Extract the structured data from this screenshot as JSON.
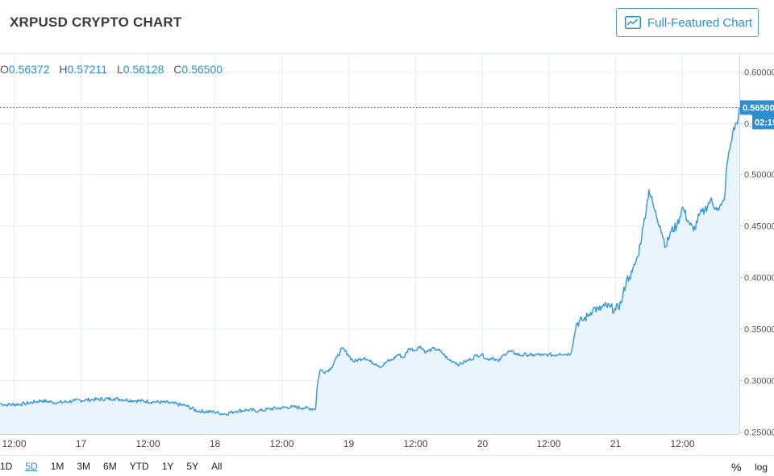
{
  "header": {
    "title": "XRPUSD CRYPTO CHART",
    "full_chart_label": "Full-Featured Chart"
  },
  "ohlc": {
    "o_label": "O",
    "o_value": "0.56372",
    "h_label": "H",
    "h_value": "0.57211",
    "l_label": "L",
    "l_value": "0.56128",
    "c_label": "C",
    "c_value": "0.56500"
  },
  "price_tag": {
    "value": "0.56500",
    "countdown": "02:19"
  },
  "range_bar": {
    "items": [
      "1D",
      "5D",
      "1M",
      "3M",
      "6M",
      "YTD",
      "1Y",
      "5Y",
      "All"
    ],
    "active": "5D"
  },
  "scale_options": {
    "percent": "%",
    "log": "log"
  },
  "colors": {
    "line": "#3d9ad9",
    "fill": "#eaf4fc",
    "accent": "#2d8fd1",
    "grid": "#e9eef2"
  },
  "chart_data": {
    "type": "area",
    "title": "XRPUSD",
    "xlabel": "",
    "ylabel": "",
    "y_ticks": [
      0.25,
      0.3,
      0.35,
      0.4,
      0.45,
      0.5,
      0.55,
      0.6
    ],
    "y_tick_labels": [
      "0.25000",
      "0.30000",
      "0.35000",
      "0.40000",
      "0.45000",
      "0.50000",
      "0.55000",
      "0.60000"
    ],
    "ylim": [
      0.2475,
      0.617
    ],
    "x_ticks": [
      {
        "t": 12,
        "label": "12:00"
      },
      {
        "t": 24,
        "label": "17"
      },
      {
        "t": 36,
        "label": "12:00"
      },
      {
        "t": 48,
        "label": "18"
      },
      {
        "t": 60,
        "label": "12:00"
      },
      {
        "t": 72,
        "label": "19"
      },
      {
        "t": 84,
        "label": "12:00"
      },
      {
        "t": 96,
        "label": "20"
      },
      {
        "t": 108,
        "label": "12:00"
      },
      {
        "t": 120,
        "label": "21"
      },
      {
        "t": 132,
        "label": "12:00"
      }
    ],
    "xlim": [
      9.6,
      142.2
    ],
    "last_price": 0.565,
    "x": [
      9.6,
      11,
      14,
      17,
      20,
      23,
      26,
      30,
      34,
      37,
      40,
      43,
      45,
      48,
      50,
      52,
      54,
      56,
      58,
      60,
      62,
      64,
      66.2,
      66.5,
      67,
      68,
      69,
      70,
      71,
      72,
      73,
      74,
      75,
      76,
      77,
      78,
      79,
      80,
      81,
      82,
      83,
      84,
      85,
      86,
      87,
      88,
      89,
      90,
      91,
      92,
      93,
      94,
      95,
      96,
      97,
      98,
      99,
      100,
      101,
      102,
      103,
      104,
      105,
      106,
      107,
      108,
      109,
      110,
      111,
      112,
      112.5,
      113,
      114,
      115,
      116,
      117,
      118,
      119,
      120,
      121,
      122,
      122.5,
      123,
      124,
      125,
      126,
      127,
      128,
      129,
      130,
      131,
      132,
      133,
      134,
      135,
      136,
      137,
      138,
      138.5,
      139,
      139.5,
      140,
      141,
      142,
      142.2
    ],
    "y": [
      0.277,
      0.276,
      0.277,
      0.28,
      0.278,
      0.28,
      0.281,
      0.282,
      0.28,
      0.279,
      0.278,
      0.275,
      0.27,
      0.269,
      0.267,
      0.27,
      0.271,
      0.27,
      0.272,
      0.273,
      0.274,
      0.273,
      0.272,
      0.295,
      0.31,
      0.308,
      0.312,
      0.322,
      0.331,
      0.325,
      0.318,
      0.32,
      0.322,
      0.318,
      0.316,
      0.313,
      0.318,
      0.32,
      0.325,
      0.322,
      0.331,
      0.329,
      0.333,
      0.327,
      0.33,
      0.33,
      0.326,
      0.32,
      0.318,
      0.315,
      0.318,
      0.32,
      0.324,
      0.325,
      0.32,
      0.322,
      0.318,
      0.325,
      0.328,
      0.326,
      0.324,
      0.325,
      0.324,
      0.325,
      0.324,
      0.325,
      0.324,
      0.326,
      0.325,
      0.326,
      0.34,
      0.355,
      0.358,
      0.362,
      0.37,
      0.368,
      0.372,
      0.371,
      0.368,
      0.375,
      0.398,
      0.4,
      0.405,
      0.42,
      0.45,
      0.485,
      0.465,
      0.45,
      0.43,
      0.445,
      0.45,
      0.468,
      0.455,
      0.445,
      0.46,
      0.465,
      0.475,
      0.468,
      0.465,
      0.47,
      0.475,
      0.51,
      0.54,
      0.555,
      0.565
    ]
  }
}
